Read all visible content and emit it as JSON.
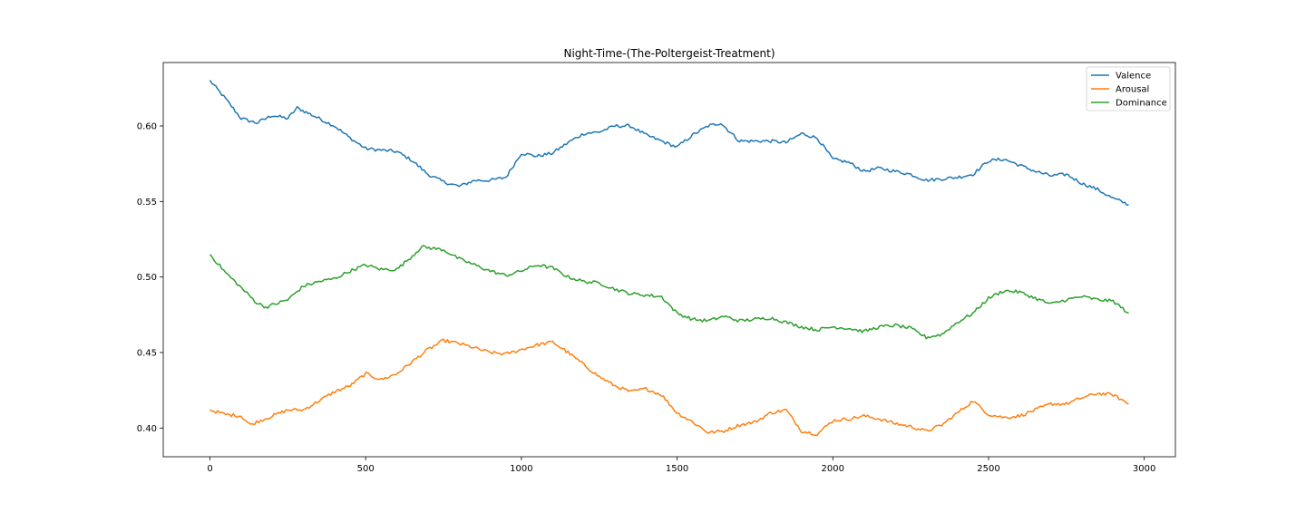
{
  "chart_data": {
    "type": "line",
    "title": "Night-Time-(The-Poltergeist-Treatment)",
    "xlabel": "",
    "ylabel": "",
    "xlim": [
      -150,
      3100
    ],
    "ylim": [
      0.381,
      0.642
    ],
    "xticks": [
      0,
      500,
      1000,
      1500,
      2000,
      2500,
      3000
    ],
    "xtick_labels": [
      "0",
      "500",
      "1000",
      "1500",
      "2000",
      "2500",
      "3000"
    ],
    "yticks": [
      0.4,
      0.45,
      0.5,
      0.55,
      0.6
    ],
    "ytick_labels": [
      "0.40",
      "0.45",
      "0.50",
      "0.55",
      "0.60"
    ],
    "grid": false,
    "legend_position": "top-right",
    "series": [
      {
        "name": "Valence",
        "color": "#1f77b4",
        "x": [
          0,
          50,
          100,
          150,
          200,
          250,
          280,
          350,
          400,
          450,
          500,
          550,
          600,
          650,
          700,
          750,
          800,
          850,
          900,
          950,
          1000,
          1050,
          1100,
          1150,
          1200,
          1250,
          1300,
          1350,
          1400,
          1450,
          1500,
          1550,
          1600,
          1640,
          1700,
          1750,
          1800,
          1850,
          1900,
          1950,
          2000,
          2050,
          2100,
          2150,
          2200,
          2250,
          2300,
          2350,
          2400,
          2450,
          2500,
          2550,
          2600,
          2650,
          2700,
          2750,
          2800,
          2850,
          2900,
          2950
        ],
        "y": [
          0.63,
          0.618,
          0.605,
          0.602,
          0.607,
          0.605,
          0.612,
          0.605,
          0.6,
          0.592,
          0.585,
          0.584,
          0.583,
          0.577,
          0.568,
          0.563,
          0.56,
          0.564,
          0.564,
          0.566,
          0.582,
          0.58,
          0.582,
          0.589,
          0.595,
          0.596,
          0.6,
          0.6,
          0.594,
          0.59,
          0.586,
          0.594,
          0.6,
          0.602,
          0.59,
          0.59,
          0.59,
          0.589,
          0.595,
          0.592,
          0.578,
          0.576,
          0.57,
          0.572,
          0.57,
          0.568,
          0.564,
          0.565,
          0.566,
          0.568,
          0.577,
          0.578,
          0.574,
          0.57,
          0.567,
          0.568,
          0.562,
          0.558,
          0.552,
          0.548
        ]
      },
      {
        "name": "Arousal",
        "color": "#ff7f0e",
        "x": [
          0,
          50,
          100,
          130,
          150,
          200,
          250,
          300,
          350,
          400,
          450,
          500,
          550,
          600,
          650,
          700,
          750,
          800,
          850,
          900,
          950,
          1000,
          1050,
          1100,
          1150,
          1200,
          1250,
          1300,
          1350,
          1400,
          1450,
          1500,
          1550,
          1600,
          1650,
          1700,
          1750,
          1800,
          1850,
          1900,
          1950,
          2000,
          2050,
          2100,
          2150,
          2200,
          2250,
          2300,
          2350,
          2400,
          2450,
          2500,
          2550,
          2600,
          2650,
          2700,
          2750,
          2800,
          2850,
          2900,
          2950
        ],
        "y": [
          0.412,
          0.409,
          0.408,
          0.402,
          0.404,
          0.408,
          0.412,
          0.412,
          0.418,
          0.424,
          0.428,
          0.436,
          0.432,
          0.436,
          0.444,
          0.452,
          0.458,
          0.456,
          0.453,
          0.45,
          0.449,
          0.452,
          0.455,
          0.457,
          0.45,
          0.442,
          0.434,
          0.428,
          0.424,
          0.426,
          0.422,
          0.41,
          0.404,
          0.397,
          0.398,
          0.402,
          0.404,
          0.41,
          0.412,
          0.398,
          0.396,
          0.405,
          0.406,
          0.408,
          0.406,
          0.403,
          0.401,
          0.398,
          0.402,
          0.41,
          0.418,
          0.409,
          0.407,
          0.408,
          0.412,
          0.416,
          0.416,
          0.42,
          0.423,
          0.422,
          0.416
        ]
      },
      {
        "name": "Dominance",
        "color": "#2ca02c",
        "x": [
          0,
          50,
          100,
          150,
          180,
          250,
          300,
          350,
          400,
          450,
          500,
          550,
          600,
          650,
          680,
          750,
          800,
          850,
          900,
          950,
          1000,
          1050,
          1100,
          1150,
          1200,
          1250,
          1300,
          1350,
          1400,
          1450,
          1500,
          1550,
          1600,
          1650,
          1700,
          1750,
          1800,
          1850,
          1900,
          1950,
          2000,
          2050,
          2100,
          2150,
          2200,
          2250,
          2300,
          2350,
          2400,
          2450,
          2500,
          2550,
          2600,
          2650,
          2700,
          2750,
          2800,
          2850,
          2900,
          2950
        ],
        "y": [
          0.515,
          0.503,
          0.493,
          0.483,
          0.48,
          0.485,
          0.494,
          0.497,
          0.499,
          0.504,
          0.508,
          0.505,
          0.505,
          0.514,
          0.52,
          0.518,
          0.512,
          0.508,
          0.504,
          0.501,
          0.504,
          0.508,
          0.506,
          0.5,
          0.497,
          0.496,
          0.492,
          0.489,
          0.488,
          0.487,
          0.476,
          0.472,
          0.471,
          0.474,
          0.471,
          0.472,
          0.473,
          0.47,
          0.467,
          0.465,
          0.467,
          0.466,
          0.464,
          0.467,
          0.468,
          0.466,
          0.46,
          0.462,
          0.47,
          0.476,
          0.486,
          0.491,
          0.49,
          0.486,
          0.482,
          0.485,
          0.487,
          0.485,
          0.484,
          0.476
        ]
      }
    ]
  }
}
